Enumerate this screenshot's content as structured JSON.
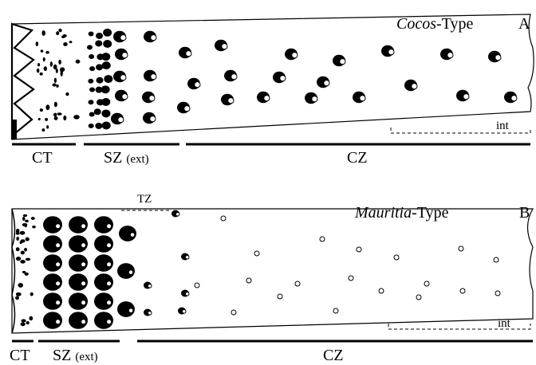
{
  "panels": [
    {
      "type_name": "Cocos",
      "type_suffix": "-Type",
      "letter": "A",
      "zones": [
        {
          "label": "CT"
        },
        {
          "label": "SZ",
          "note": "(ext)"
        },
        {
          "label": "CZ"
        }
      ],
      "sub_zone": "int"
    },
    {
      "type_name": "Mauritia",
      "type_suffix": "-Type",
      "letter": "B",
      "zones": [
        {
          "label": "CT"
        },
        {
          "label": "SZ",
          "note": "(ext)"
        },
        {
          "label": "CZ"
        }
      ],
      "sub_zone": "int",
      "transition_zone": "TZ"
    }
  ]
}
